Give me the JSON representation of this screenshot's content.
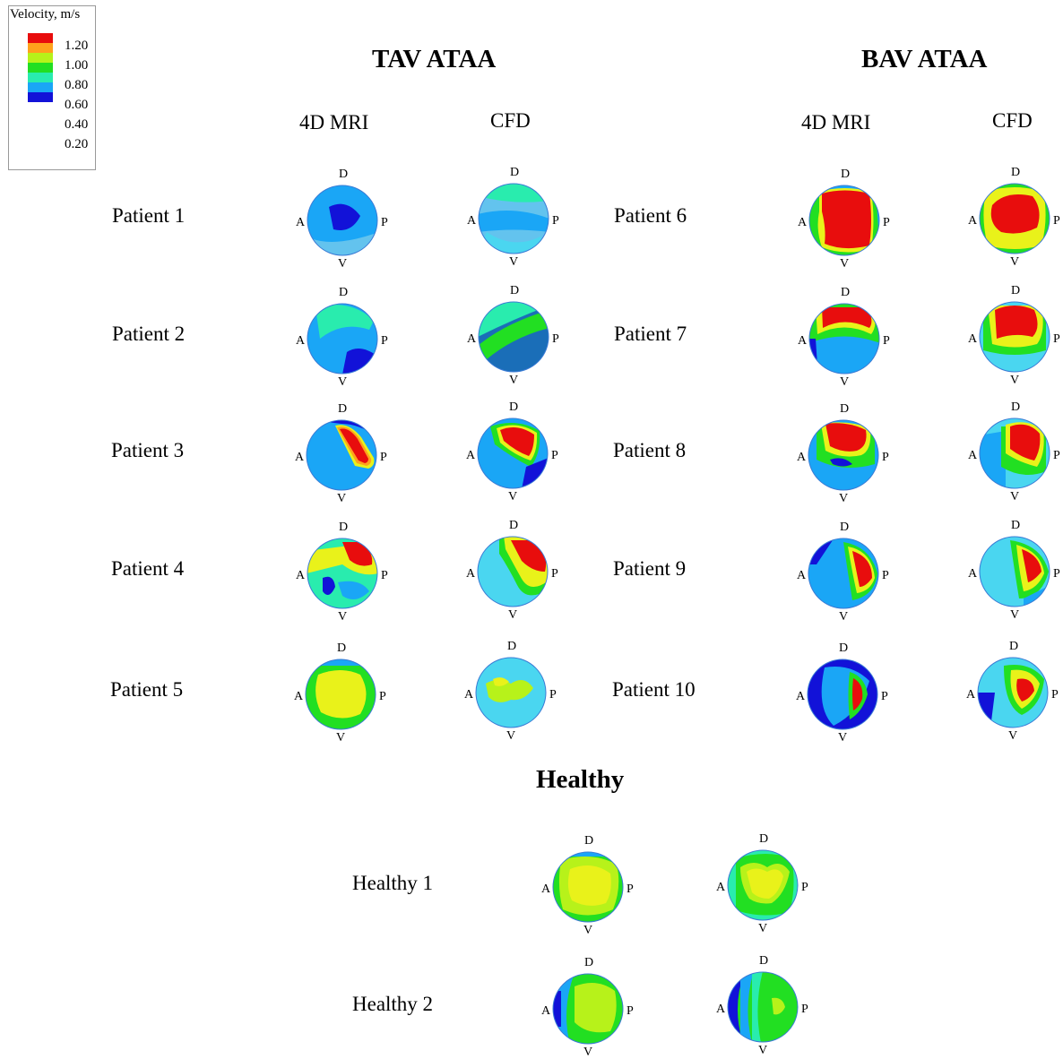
{
  "legend": {
    "title": "Velocity, m/s",
    "colors": [
      "#e80d0d",
      "#ffa21c",
      "#b7f21a",
      "#22df22",
      "#29ecae",
      "#1aa6f6",
      "#1212d8"
    ],
    "ticks": [
      "1.20",
      "1.00",
      "0.80",
      "0.60",
      "0.40",
      "0.20"
    ]
  },
  "groups": {
    "tav": {
      "title": "TAV ATAA",
      "col1": "4D MRI",
      "col2": "CFD"
    },
    "bav": {
      "title": "BAV ATAA",
      "col1": "4D MRI",
      "col2": "CFD"
    }
  },
  "healthy_heading": "Healthy",
  "orientation_labels": {
    "top": "D",
    "left": "A",
    "right": "P",
    "bottom": "V"
  },
  "rows": {
    "tav": [
      "Patient 1",
      "Patient 2",
      "Patient 3",
      "Patient 4",
      "Patient 5"
    ],
    "bav": [
      "Patient 6",
      "Patient 7",
      "Patient 8",
      "Patient 9",
      "Patient 10"
    ],
    "healthy": [
      "Healthy 1",
      "Healthy 2"
    ]
  }
}
